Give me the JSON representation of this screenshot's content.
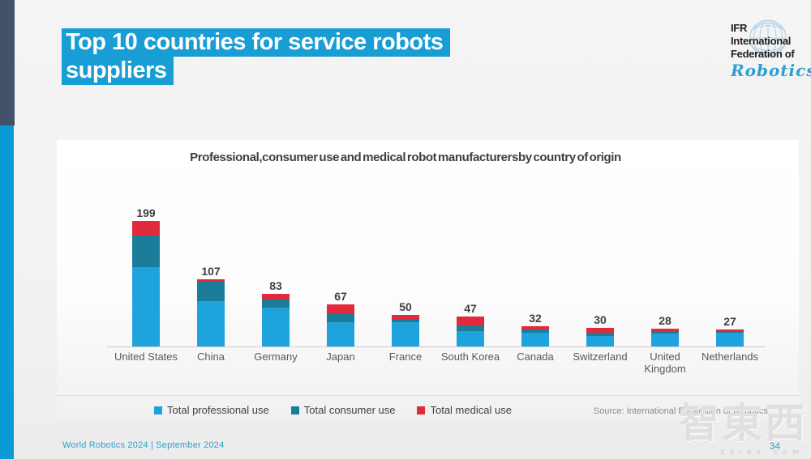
{
  "slide": {
    "title_line1": "Top 10 countries for service robots",
    "title_line2": "suppliers",
    "footer_left": "World Robotics 2024  | September 2024",
    "page_number": "34",
    "watermark": {
      "text": "智東西",
      "subtext": "zhidx.com"
    }
  },
  "logo": {
    "line1": "IFR",
    "line2": "International",
    "line3": "Federation of",
    "script": "Robotics"
  },
  "colors": {
    "title_highlight": "#189dd4",
    "sidebar_dark": "#42526b",
    "sidebar_cyan": "#0a9bd7",
    "footer_teal": "#2d9fc9"
  },
  "chart_data": {
    "type": "bar",
    "stacked": true,
    "title": "Professional,consumer use and medical robot manufacturersby country of origin",
    "categories": [
      "United States",
      "China",
      "Germany",
      "Japan",
      "France",
      "South Korea",
      "Canada",
      "Switzerland",
      "United\nKingdom",
      "Netherlands"
    ],
    "series": [
      {
        "name": "Total professional use",
        "color": "#1fa3dc",
        "values": [
          126,
          72,
          61,
          39,
          39,
          24,
          22,
          17,
          20,
          22
        ]
      },
      {
        "name": "Total consumer use",
        "color": "#1b7d99",
        "values": [
          50,
          30,
          13,
          13,
          5,
          9,
          5,
          5,
          4,
          2
        ]
      },
      {
        "name": "Total medical use",
        "color": "#e12b3c",
        "values": [
          23,
          5,
          9,
          15,
          6,
          14,
          5,
          8,
          4,
          3
        ]
      }
    ],
    "totals": [
      199,
      107,
      83,
      67,
      50,
      47,
      32,
      30,
      28,
      27
    ],
    "ylim": [
      0,
      199
    ],
    "grid": false,
    "legend_position": "bottom",
    "source": "Source: International Federation of Robotics"
  }
}
